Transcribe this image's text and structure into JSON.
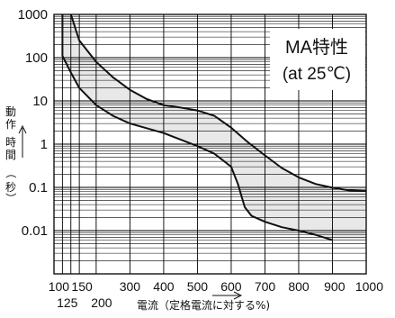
{
  "chart_data": {
    "type": "line",
    "title": "MA特性",
    "subtitle": "(at 25℃)",
    "xlabel": "電流（定格電流に対する%)",
    "ylabel": "動作時間（秒）",
    "xlim": [
      75,
      1000
    ],
    "ylim": [
      0.001,
      1000
    ],
    "yscale": "log",
    "grid": true,
    "x_ticks_top": [
      "100",
      "150",
      "300",
      "400",
      "500",
      "600",
      "700",
      "800",
      "900",
      "1000"
    ],
    "x_ticks_bottom": [
      "125",
      "200"
    ],
    "y_ticks": [
      "1000",
      "100",
      "10",
      "1",
      "0.1",
      "0.01"
    ],
    "series": [
      {
        "role": "upper",
        "points": [
          [
            125,
            1000
          ],
          [
            150,
            250
          ],
          [
            200,
            80
          ],
          [
            250,
            35
          ],
          [
            300,
            18
          ],
          [
            350,
            11
          ],
          [
            400,
            8
          ],
          [
            450,
            7
          ],
          [
            500,
            6
          ],
          [
            550,
            4.5
          ],
          [
            600,
            2.4
          ],
          [
            650,
            1.1
          ],
          [
            700,
            0.55
          ],
          [
            750,
            0.28
          ],
          [
            800,
            0.17
          ],
          [
            850,
            0.12
          ],
          [
            900,
            0.098
          ],
          [
            950,
            0.085
          ],
          [
            1000,
            0.082
          ]
        ]
      },
      {
        "role": "lower",
        "points": [
          [
            100,
            1000
          ],
          [
            100,
            110
          ],
          [
            125,
            45
          ],
          [
            150,
            20
          ],
          [
            200,
            8
          ],
          [
            250,
            4.5
          ],
          [
            300,
            3
          ],
          [
            400,
            1.8
          ],
          [
            500,
            0.9
          ],
          [
            550,
            0.6
          ],
          [
            600,
            0.3
          ],
          [
            620,
            0.12
          ],
          [
            640,
            0.035
          ],
          [
            660,
            0.022
          ],
          [
            700,
            0.016
          ],
          [
            750,
            0.012
          ],
          [
            800,
            0.01
          ],
          [
            850,
            0.008
          ],
          [
            900,
            0.006
          ]
        ]
      }
    ],
    "band_fill": "#e8e8e8",
    "line_color": "#111111"
  }
}
